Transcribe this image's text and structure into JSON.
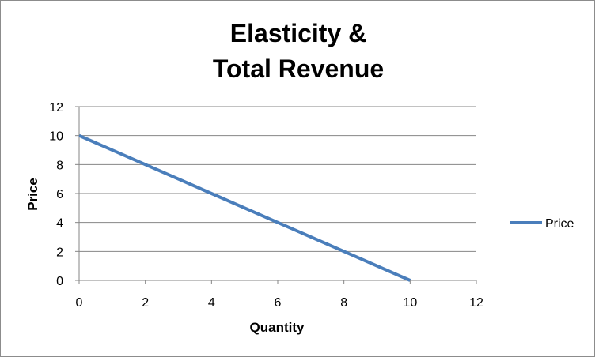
{
  "chart_data": {
    "type": "scatter",
    "title_lines": [
      "Elasticity &",
      "Total Revenue"
    ],
    "xlabel": "Quantity",
    "ylabel": "Price",
    "xlim": [
      0,
      12
    ],
    "ylim": [
      0,
      12
    ],
    "xticks": [
      0,
      2,
      4,
      6,
      8,
      10,
      12
    ],
    "yticks": [
      0,
      2,
      4,
      6,
      8,
      10,
      12
    ],
    "grid": "horizontal",
    "legend_position": "right",
    "series": [
      {
        "name": "Price",
        "color": "#4a7ebb",
        "x": [
          0,
          2,
          4,
          6,
          8,
          10
        ],
        "y": [
          10,
          8,
          6,
          4,
          2,
          0
        ]
      }
    ]
  }
}
